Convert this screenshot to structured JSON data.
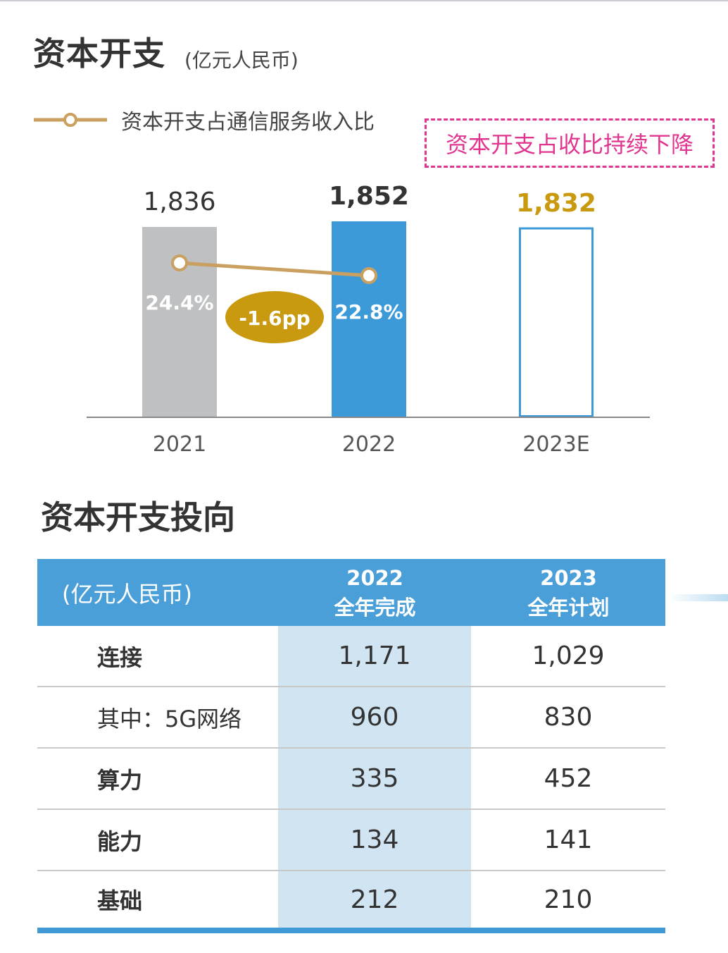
{
  "header": {
    "title": "资本开支",
    "unit": "(亿元人民币)"
  },
  "legend": {
    "label": "资本开支占通信服务收入比",
    "icon": "line-circle-marker-icon"
  },
  "callout": {
    "text": "资本开支占收比持续下降"
  },
  "colors": {
    "bar_2021": "#bfc0c2",
    "bar_2022": "#3d9ad8",
    "bar_2023_outline": "#3d9ad8",
    "line": "#c9a060",
    "badge": "#c99a10",
    "label_2023": "#c99a10",
    "callout": "#e0368f",
    "table_header": "#4a9fd8",
    "table_highlight": "#d1e4f2"
  },
  "chart_data": {
    "type": "bar",
    "categories": [
      "2021",
      "2022",
      "2023E"
    ],
    "series": [
      {
        "values": [
          1836,
          1852,
          1832
        ],
        "value_labels": [
          "1,836",
          "1,852",
          "1,832"
        ]
      },
      {
        "name": "资本开支占通信服务收入比",
        "type": "line",
        "values": [
          24.4,
          22.8,
          null
        ],
        "value_labels": [
          "24.4%",
          "22.8%",
          ""
        ]
      }
    ],
    "annotation": "-1.6pp",
    "ylim": [
      1296,
      1900
    ],
    "grid": false,
    "legend_position": "top-left"
  },
  "section2": {
    "title": "资本开支投向"
  },
  "table": {
    "header": {
      "unit": "(亿元人民币)",
      "col1_year": "2022",
      "col1_label": "全年完成",
      "col2_year": "2023",
      "col2_label": "全年计划"
    },
    "rows": [
      {
        "label": "连接",
        "v2022": "1,171",
        "v2023": "1,029",
        "bold": true
      },
      {
        "label": "其中：5G网络",
        "v2022": "960",
        "v2023": "830",
        "bold": false
      },
      {
        "label": "算力",
        "v2022": "335",
        "v2023": "452",
        "bold": true
      },
      {
        "label": "能力",
        "v2022": "134",
        "v2023": "141",
        "bold": true
      },
      {
        "label": "基础",
        "v2022": "212",
        "v2023": "210",
        "bold": true
      }
    ]
  }
}
